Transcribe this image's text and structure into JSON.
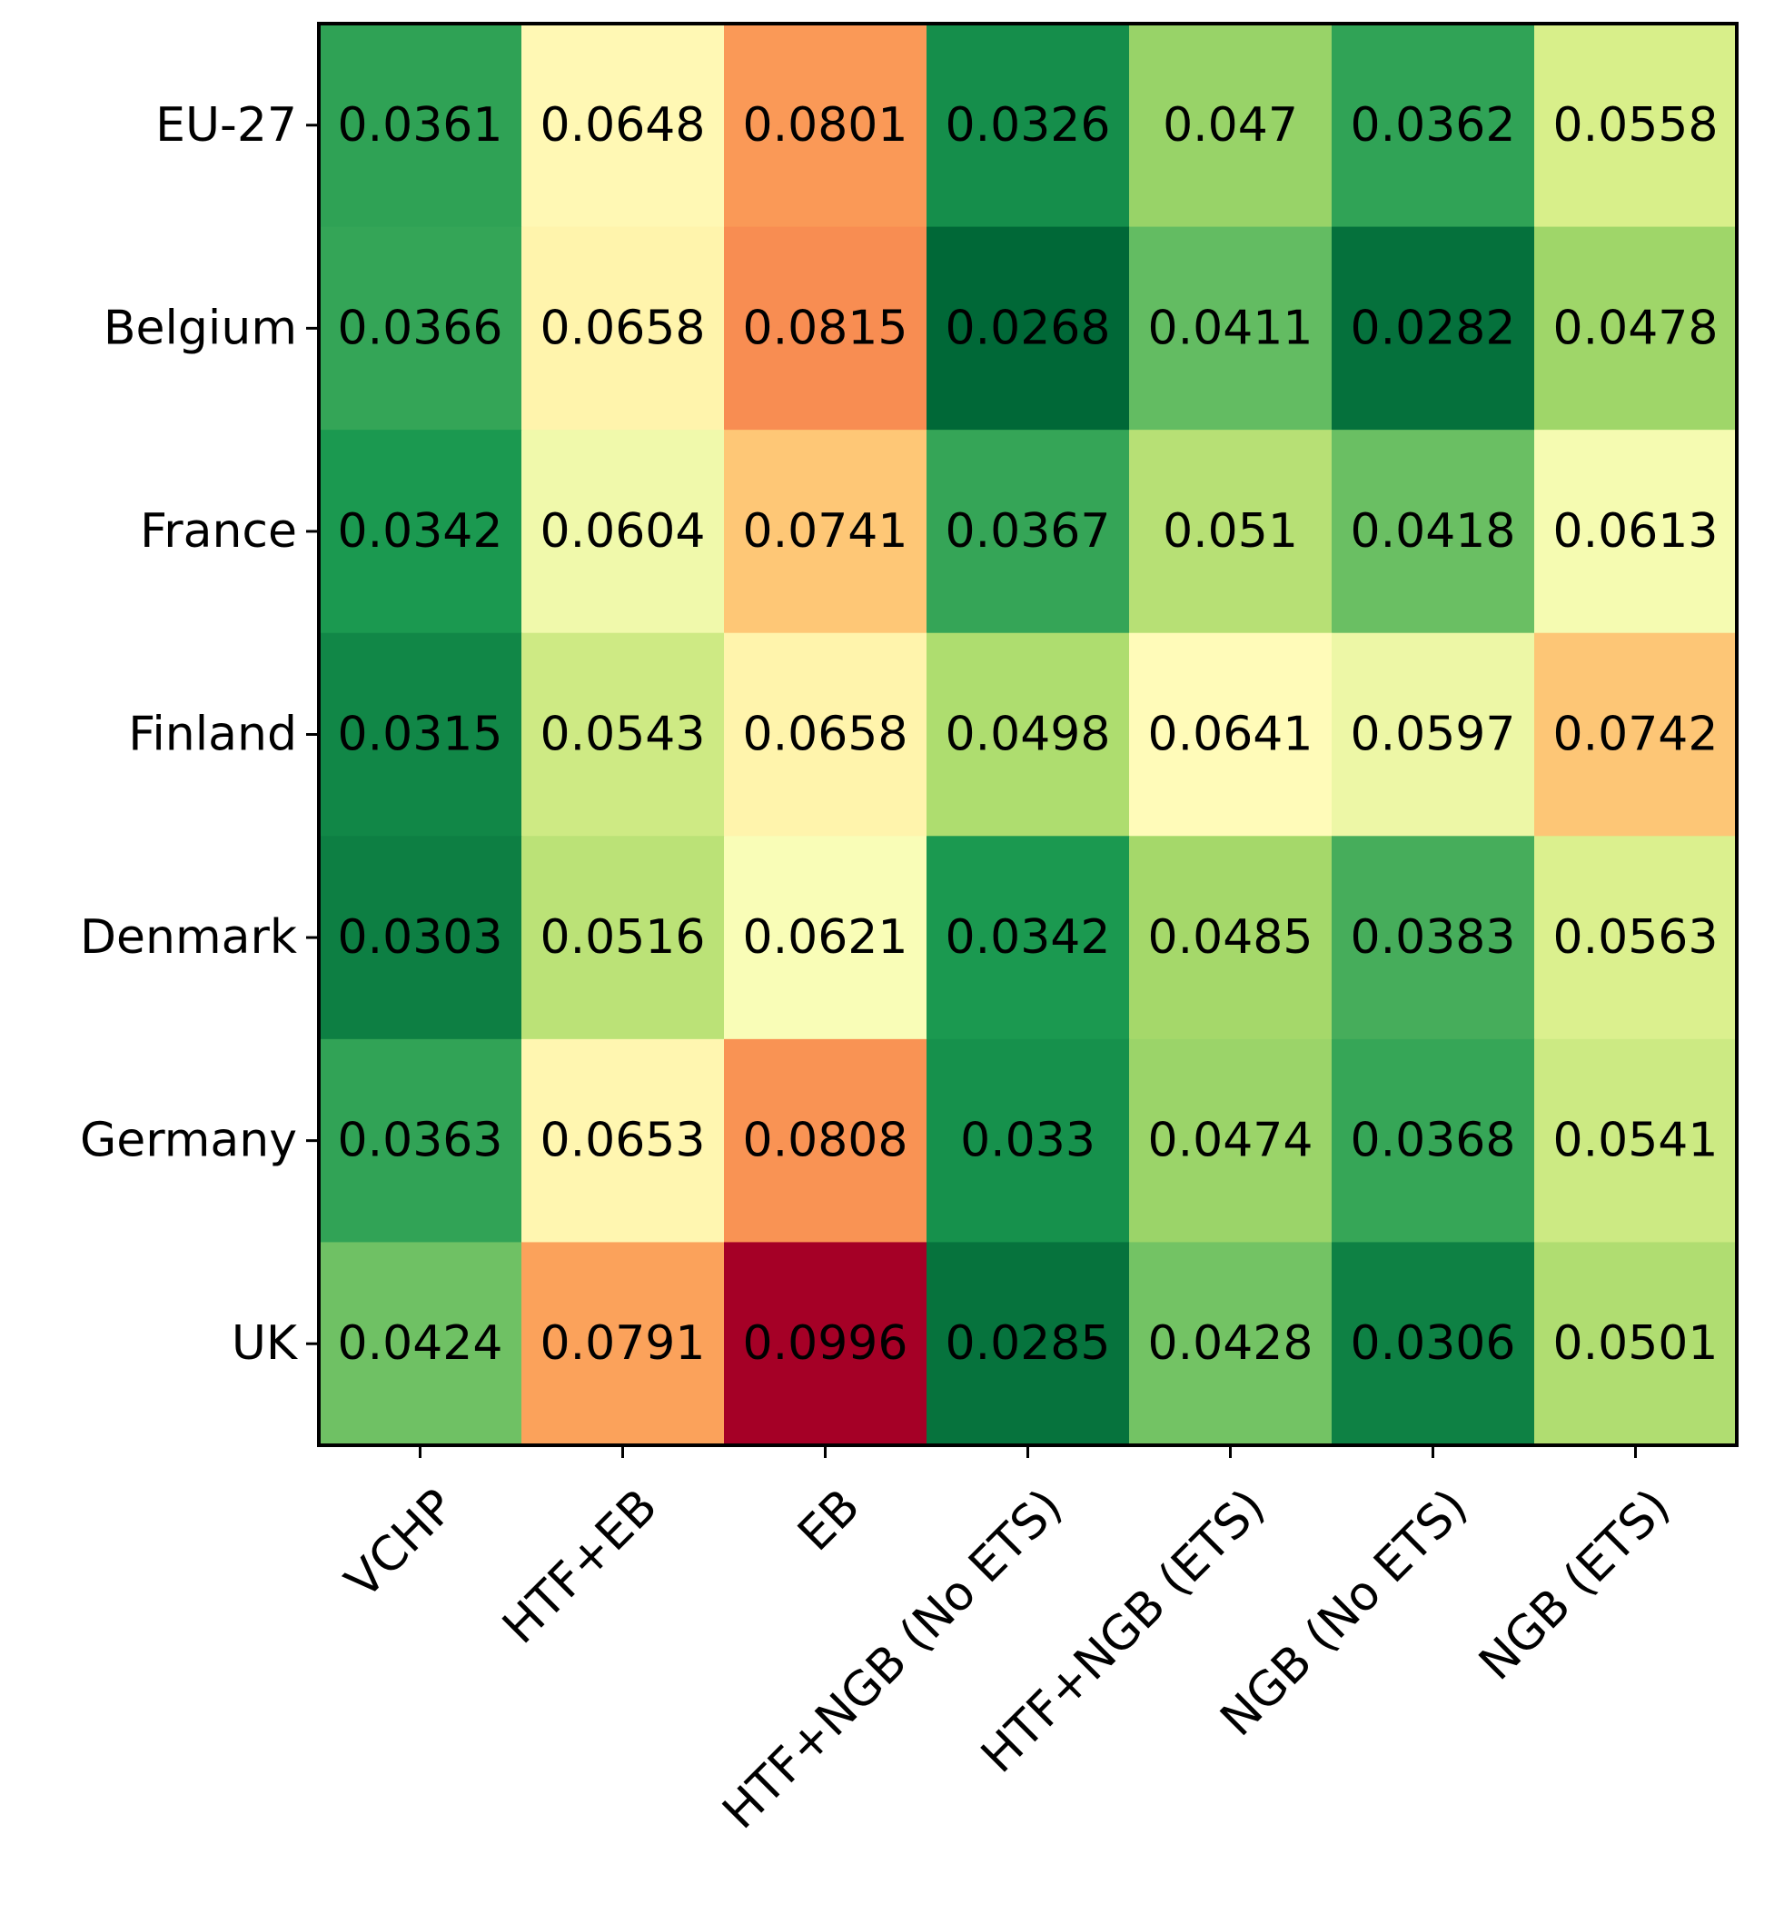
{
  "chart_data": {
    "type": "heatmap",
    "title": "",
    "xlabel": "",
    "ylabel": "",
    "colormap": "RdYlGn_r",
    "vmin": 0.0268,
    "vmax": 0.0996,
    "columns": [
      "VCHP",
      "HTF+EB",
      "EB",
      "HTF+NGB (No ETS)",
      "HTF+NGB (ETS)",
      "NGB (No ETS)",
      "NGB (ETS)"
    ],
    "rows": [
      "EU-27",
      "Belgium",
      "France",
      "Finland",
      "Denmark",
      "Germany",
      "UK"
    ],
    "values": [
      [
        0.0361,
        0.0648,
        0.0801,
        0.0326,
        0.047,
        0.0362,
        0.0558
      ],
      [
        0.0366,
        0.0658,
        0.0815,
        0.0268,
        0.0411,
        0.0282,
        0.0478
      ],
      [
        0.0342,
        0.0604,
        0.0741,
        0.0367,
        0.051,
        0.0418,
        0.0613
      ],
      [
        0.0315,
        0.0543,
        0.0658,
        0.0498,
        0.0641,
        0.0597,
        0.0742
      ],
      [
        0.0303,
        0.0516,
        0.0621,
        0.0342,
        0.0485,
        0.0383,
        0.0563
      ],
      [
        0.0363,
        0.0653,
        0.0808,
        0.033,
        0.0474,
        0.0368,
        0.0541
      ],
      [
        0.0424,
        0.0791,
        0.0996,
        0.0285,
        0.0428,
        0.0306,
        0.0501
      ]
    ],
    "value_labels": [
      [
        "0.0361",
        "0.0648",
        "0.0801",
        "0.0326",
        "0.047",
        "0.0362",
        "0.0558"
      ],
      [
        "0.0366",
        "0.0658",
        "0.0815",
        "0.0268",
        "0.0411",
        "0.0282",
        "0.0478"
      ],
      [
        "0.0342",
        "0.0604",
        "0.0741",
        "0.0367",
        "0.051",
        "0.0418",
        "0.0613"
      ],
      [
        "0.0315",
        "0.0543",
        "0.0658",
        "0.0498",
        "0.0641",
        "0.0597",
        "0.0742"
      ],
      [
        "0.0303",
        "0.0516",
        "0.0621",
        "0.0342",
        "0.0485",
        "0.0383",
        "0.0563"
      ],
      [
        "0.0363",
        "0.0653",
        "0.0808",
        "0.033",
        "0.0474",
        "0.0368",
        "0.0541"
      ],
      [
        "0.0424",
        "0.0791",
        "0.0996",
        "0.0285",
        "0.0428",
        "0.0306",
        "0.0501"
      ]
    ],
    "grid": false,
    "colorbar": false
  }
}
